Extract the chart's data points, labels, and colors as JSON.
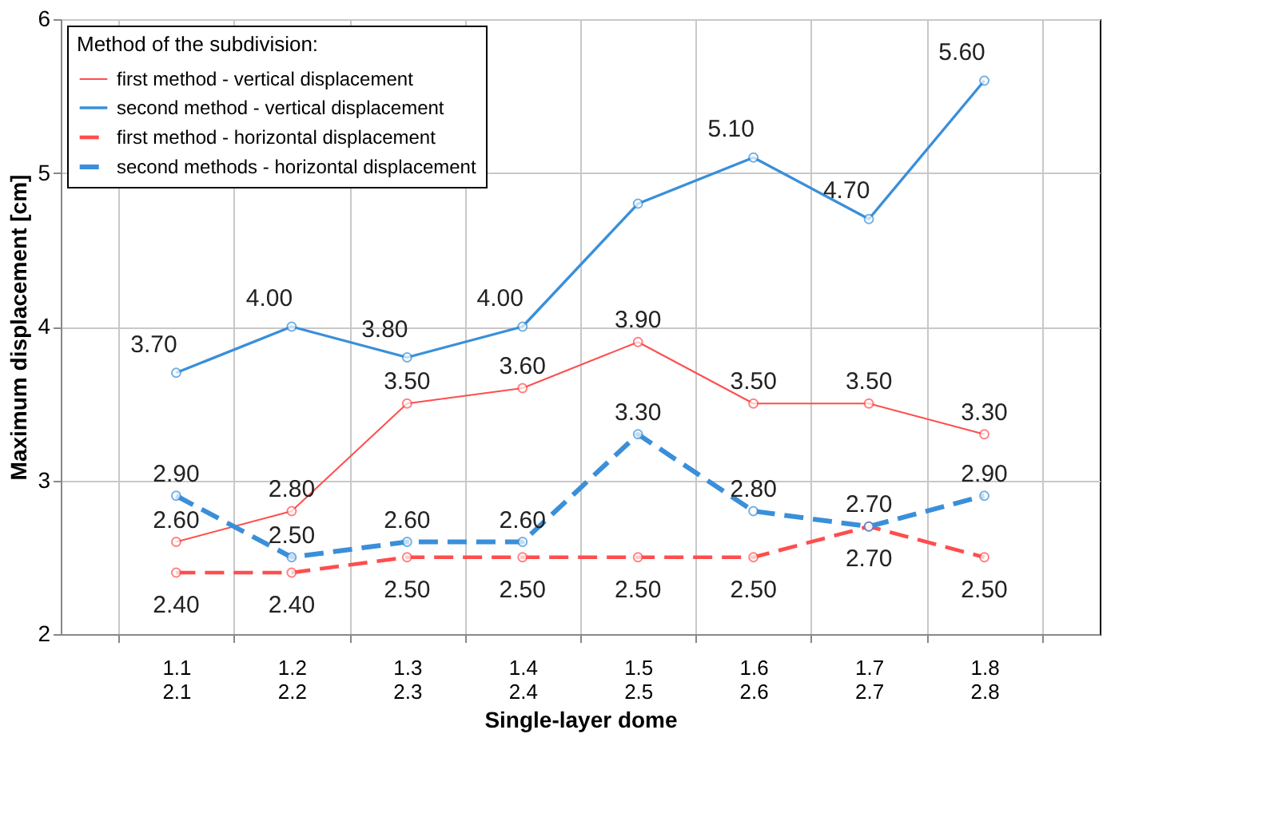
{
  "chart_data": {
    "type": "line",
    "xlabel": "Single-layer  dome",
    "ylabel": "Maximum  displacement  [cm]",
    "legend_title": "Method of the subdivision:",
    "categories": [
      "1.1\n2.1",
      "1.2\n2.2",
      "1.3\n2.3",
      "1.4\n2.4",
      "1.5\n2.5",
      "1.6\n2.6",
      "1.7\n2.7",
      "1.8\n2.8"
    ],
    "series": [
      {
        "name": "first method - vertical displacement",
        "color": "#ff4d4d",
        "line_style": "solid",
        "values": [
          2.6,
          2.8,
          3.5,
          3.6,
          3.9,
          3.5,
          3.5,
          3.3
        ],
        "value_labels": [
          "2.60",
          "2.80",
          "3.50",
          "3.60",
          "3.90",
          "3.50",
          "3.50",
          "3.30"
        ]
      },
      {
        "name": "second method - vertical displacement",
        "color": "#3a8fd9",
        "line_style": "solid",
        "values": [
          3.7,
          4.0,
          3.8,
          4.0,
          4.8,
          5.1,
          4.7,
          5.6
        ],
        "value_labels": [
          "3.70",
          "4.00",
          "3.80",
          "4.00",
          null,
          "5.10",
          "4.70",
          "5.60"
        ]
      },
      {
        "name": "first method - horizontal displacement",
        "color": "#ff4d4d",
        "line_style": "dashed",
        "values": [
          2.4,
          2.4,
          2.5,
          2.5,
          2.5,
          2.5,
          2.7,
          2.5
        ],
        "value_labels": [
          "2.40",
          "2.40",
          "2.50",
          "2.50",
          "2.50",
          "2.50",
          "2.70",
          "2.50"
        ]
      },
      {
        "name": "second methods - horizontal displacement",
        "color": "#3a8fd9",
        "line_style": "dashed",
        "values": [
          2.9,
          2.5,
          2.6,
          2.6,
          3.3,
          2.8,
          2.7,
          2.9
        ],
        "value_labels": [
          "2.90",
          "2.50",
          "2.60",
          "2.60",
          "3.30",
          "2.80",
          "2.70",
          "2.90"
        ]
      }
    ],
    "ylim": [
      2,
      6
    ],
    "yticks": [
      2,
      3,
      4,
      5,
      6
    ],
    "grid": true,
    "legend": "top left",
    "marker": "circle"
  }
}
